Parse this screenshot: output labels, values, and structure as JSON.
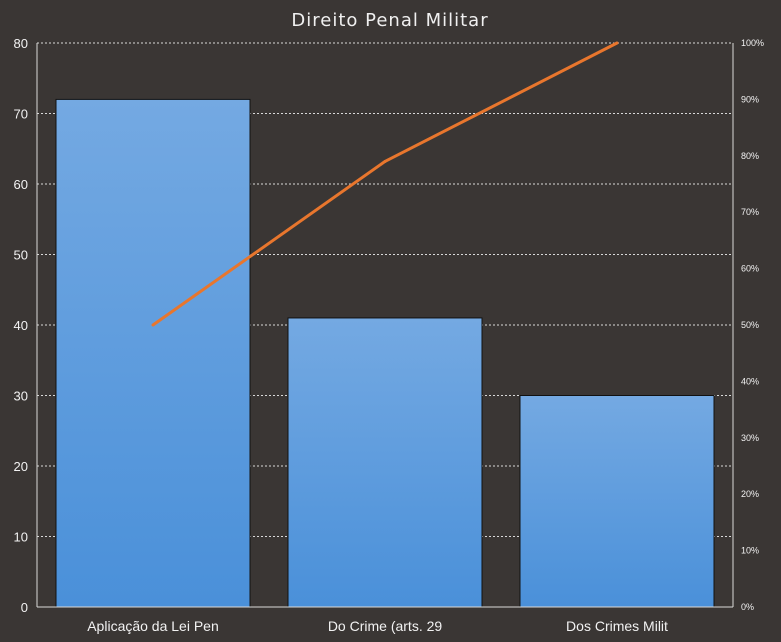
{
  "chart_data": {
    "type": "bar",
    "title": "Direito Penal Militar",
    "categories": [
      "Aplicação da Lei Pen",
      "Do Crime (arts. 29",
      "Dos Crimes Milit"
    ],
    "series": [
      {
        "type": "bar",
        "axis": "left",
        "values": [
          72,
          41,
          30
        ]
      },
      {
        "type": "line",
        "axis": "right",
        "values": [
          50,
          79,
          100
        ]
      }
    ],
    "ylim": [
      0,
      80
    ],
    "yticks": [
      0,
      10,
      20,
      30,
      40,
      50,
      60,
      70,
      80
    ],
    "y2lim": [
      0,
      100
    ],
    "y2ticks": [
      "0%",
      "10%",
      "20%",
      "30%",
      "40%",
      "50%",
      "60%",
      "70%",
      "80%",
      "90%",
      "100%"
    ],
    "grid": true,
    "legend": "none",
    "colors": {
      "background": "#3a3634",
      "bar": "#4a90d9",
      "bar_top": "#74a9e2",
      "line": "#e8762d",
      "grid": "#d9d9d9"
    }
  }
}
